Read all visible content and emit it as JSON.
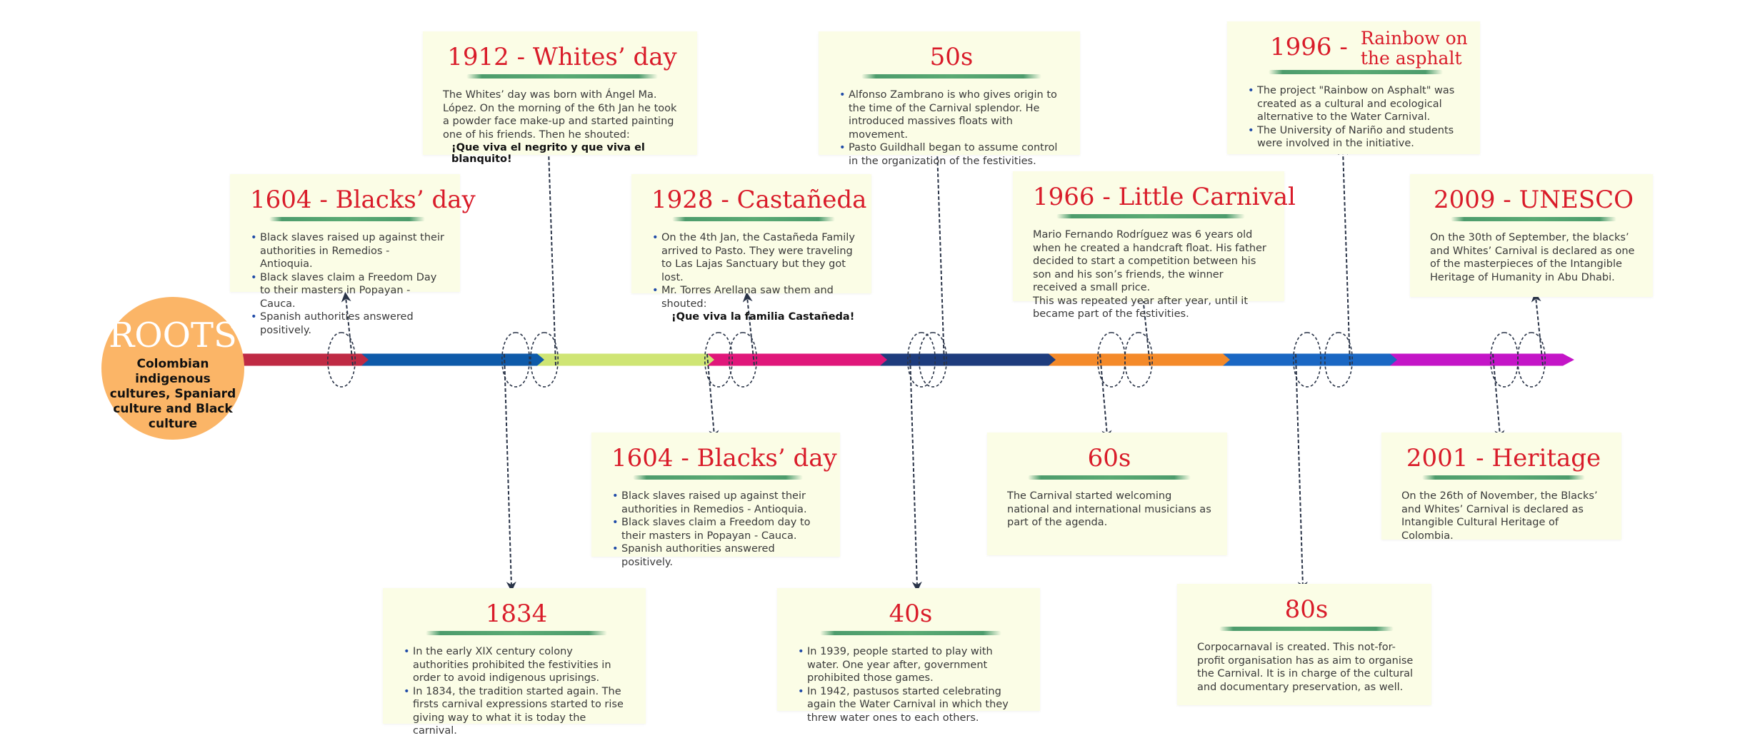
{
  "roots": {
    "title": "ROOTS",
    "subtitle": "Colombian indigenous cultures, Spaniard culture and Black culture"
  },
  "colors": {
    "card_bg": "#fbfde6",
    "heading": "#d91c2a",
    "connector": "#2a3448",
    "roots_circle": "#fbb567",
    "segments": [
      "#bf2a44",
      "#0e5aa9",
      "#cfe574",
      "#e0177a",
      "#1e3c7d",
      "#f48a2a",
      "#1a67c3",
      "#c415c7"
    ]
  },
  "events": {
    "blacks_top": {
      "title": "1604 - Blacks’ day",
      "bullets": [
        "Black slaves raised up against their authorities in Remedios - Antioquia.",
        "Black slaves claim a Freedom Day to their masters in Popayan - Cauca.",
        "Spanish authorities answered positively."
      ]
    },
    "whites": {
      "title": "1912 - Whites’ day",
      "text": "The Whites’ day was born with Ángel Ma. López. On the morning of the 6th Jan he took a powder face make-up and started painting one of his friends. Then he shouted:",
      "quote": "¡Que viva el negrito y que viva el blanquito!"
    },
    "castaneda": {
      "title": "1928 - Castañeda",
      "bullets": [
        "On the 4th Jan, the Castañeda Family arrived to Pasto. They were traveling to Las Lajas Sanctuary but they got lost.",
        "Mr. Torres Arellana saw them and shouted:"
      ],
      "quote": "¡Que viva la familia Castañeda!"
    },
    "fifties": {
      "title": "50s",
      "bullets": [
        "Alfonso Zambrano is who gives origin to the time of the Carnival splendor. He introduced massives floats with movement.",
        "Pasto Guildhall began to assume control in the organization of the festivities."
      ]
    },
    "little_carnival": {
      "title": "1966 - Little Carnival",
      "text": "Mario Fernando Rodríguez was 6 years old when he created a handcraft float. His father decided to start a competition between his son and his son’s friends, the winner received a small price.",
      "text2": "This was repeated year after year, until it became part of the festivities."
    },
    "rainbow": {
      "title_year": "1996 -",
      "title_sub": "Rainbow on the asphalt",
      "bullets": [
        "The project \"Rainbow on Asphalt\" was created as a cultural and ecological alternative to the Water Carnival.",
        "The University of Nariño and students were involved in the initiative."
      ]
    },
    "unesco": {
      "title": "2009 - UNESCO",
      "text": "On the 30th of September, the blacks’ and Whites’ Carnival is declared as one of the masterpieces of the Intangible Heritage of Humanity in Abu Dhabi."
    },
    "blacks_bottom": {
      "title": "1604 - Blacks’ day",
      "bullets": [
        "Black slaves raised up against their authorities in Remedios - Antioquia.",
        "Black slaves claim a Freedom day to their masters in Popayan - Cauca.",
        "Spanish authorities answered positively."
      ]
    },
    "y1834": {
      "title": "1834",
      "bullets": [
        "In the early XIX century colony authorities prohibited the festivities in order to avoid indigenous uprisings.",
        "In 1834, the tradition started again. The firsts carnival expressions started to rise giving way to what it is today the carnival."
      ]
    },
    "forties": {
      "title": "40s",
      "bullets": [
        "In 1939, people started to play with water. One year after, government prohibited those games.",
        "In 1942, pastusos started celebrating again the Water Carnival in which they threw water ones to each others."
      ]
    },
    "sixties": {
      "title": "60s",
      "text": "The Carnival started welcoming national and international musicians as part of the agenda."
    },
    "eighties": {
      "title": "80s",
      "text": "Corpocarnaval is created. This not-for-profit organisation has as aim to organise the Carnival. It is in charge of the cultural and documentary preservation, as well."
    },
    "heritage": {
      "title": "2001 - Heritage",
      "text": "On the 26th of November, the Blacks’ and Whites’ Carnival is declared as Intangible Cultural Heritage of Colombia."
    }
  }
}
